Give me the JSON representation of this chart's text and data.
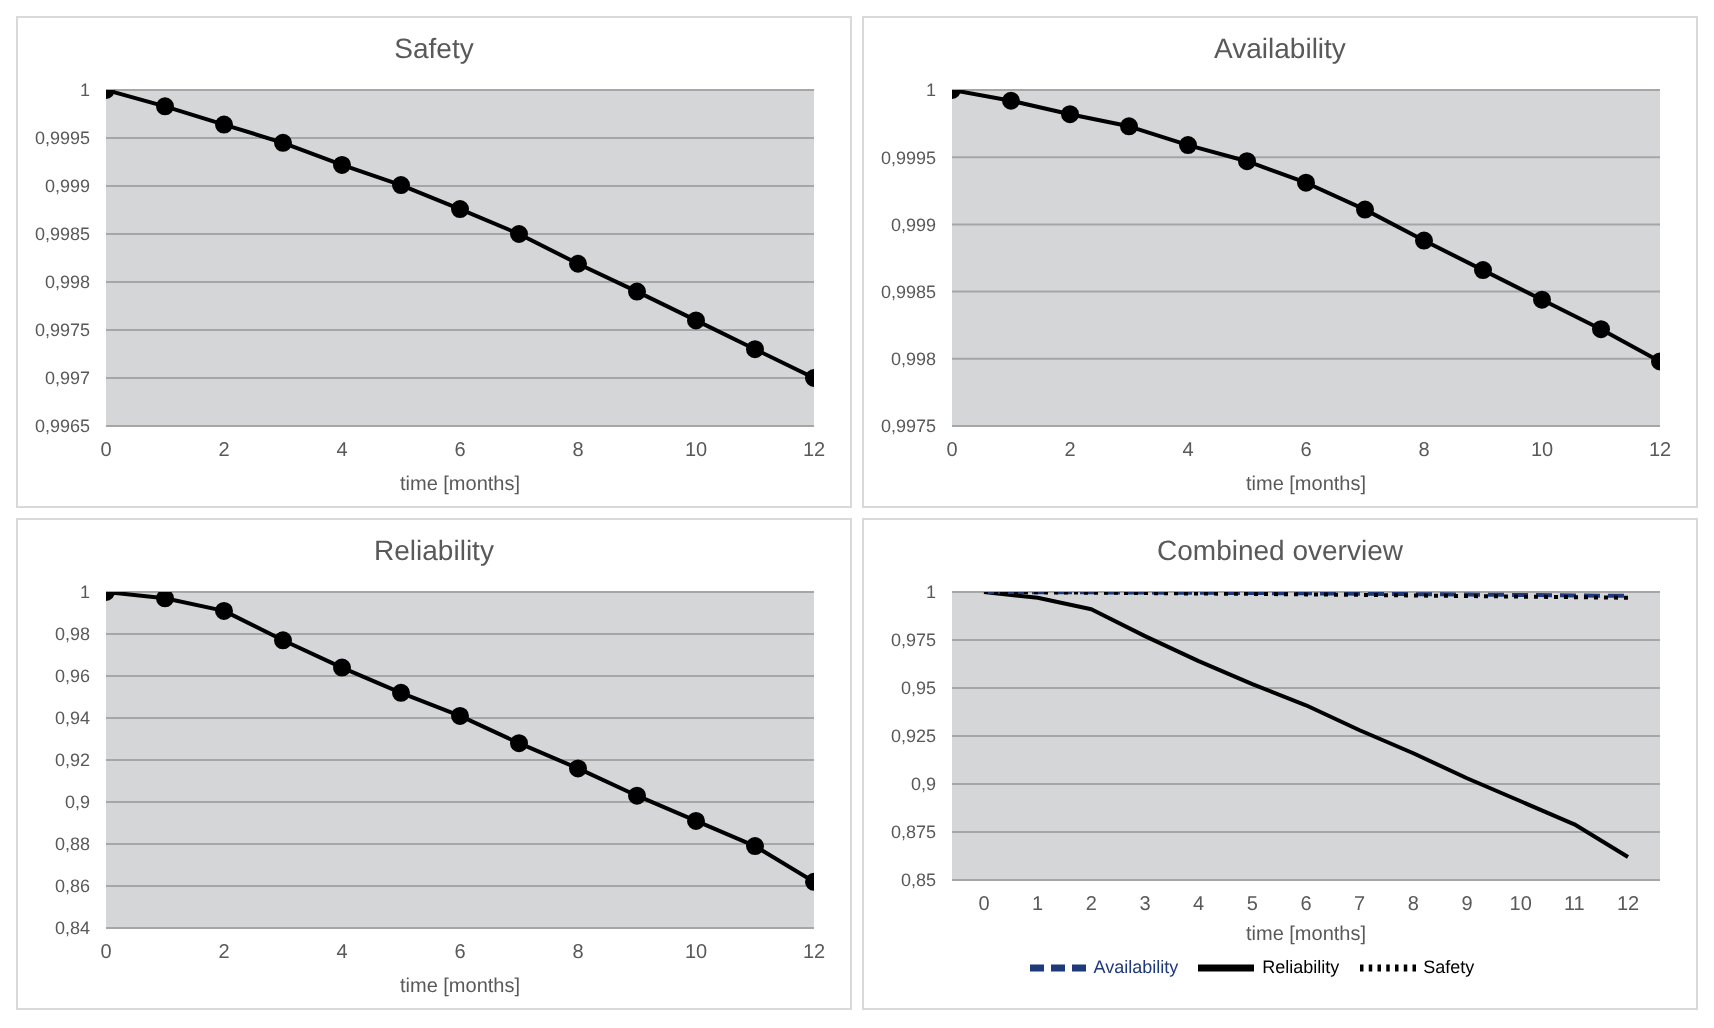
{
  "chart_data": [
    {
      "type": "line",
      "title": "Safety",
      "xlabel": "time [months]",
      "x": [
        0,
        1,
        2,
        3,
        4,
        5,
        6,
        7,
        8,
        9,
        10,
        11,
        12
      ],
      "xlim": [
        0,
        12
      ],
      "xticks": [
        0,
        2,
        4,
        6,
        8,
        10,
        12
      ],
      "values": [
        1,
        0.99983,
        0.99964,
        0.99945,
        0.99922,
        0.99901,
        0.99876,
        0.9985,
        0.99819,
        0.9979,
        0.9976,
        0.9973,
        0.997
      ],
      "color": "#000000",
      "ylim": [
        0.9965,
        1
      ],
      "yticks": [
        {
          "value": 0.9965,
          "label": "0,9965"
        },
        {
          "value": 0.997,
          "label": "0,997"
        },
        {
          "value": 0.9975,
          "label": "0,9975"
        },
        {
          "value": 0.998,
          "label": "0,998"
        },
        {
          "value": 0.9985,
          "label": "0,9985"
        },
        {
          "value": 0.999,
          "label": "0,999"
        },
        {
          "value": 0.9995,
          "label": "0,9995"
        },
        {
          "value": 1,
          "label": "1"
        }
      ],
      "grid": "y",
      "marker": "circle"
    },
    {
      "type": "line",
      "title": "Availability",
      "xlabel": "time [months]",
      "x": [
        0,
        1,
        2,
        3,
        4,
        5,
        6,
        7,
        8,
        9,
        10,
        11,
        12
      ],
      "xlim": [
        0,
        12
      ],
      "xticks": [
        0,
        2,
        4,
        6,
        8,
        10,
        12
      ],
      "values": [
        1,
        0.99992,
        0.99982,
        0.99973,
        0.99959,
        0.99947,
        0.99931,
        0.99911,
        0.99888,
        0.99866,
        0.99844,
        0.99822,
        0.99798
      ],
      "color": "#000000",
      "ylim": [
        0.9975,
        1
      ],
      "yticks": [
        {
          "value": 0.9975,
          "label": "0,9975"
        },
        {
          "value": 0.998,
          "label": "0,998"
        },
        {
          "value": 0.9985,
          "label": "0,9985"
        },
        {
          "value": 0.999,
          "label": "0,999"
        },
        {
          "value": 0.9995,
          "label": "0,9995"
        },
        {
          "value": 1,
          "label": "1"
        }
      ],
      "grid": "y",
      "marker": "circle"
    },
    {
      "type": "line",
      "title": "Reliability",
      "xlabel": "time [months]",
      "x": [
        0,
        1,
        2,
        3,
        4,
        5,
        6,
        7,
        8,
        9,
        10,
        11,
        12
      ],
      "xlim": [
        0,
        12
      ],
      "xticks": [
        0,
        2,
        4,
        6,
        8,
        10,
        12
      ],
      "values": [
        1,
        0.997,
        0.991,
        0.977,
        0.964,
        0.952,
        0.941,
        0.928,
        0.916,
        0.903,
        0.891,
        0.879,
        0.862
      ],
      "color": "#000000",
      "ylim": [
        0.84,
        1
      ],
      "yticks": [
        {
          "value": 0.84,
          "label": "0,84"
        },
        {
          "value": 0.86,
          "label": "0,86"
        },
        {
          "value": 0.88,
          "label": "0,88"
        },
        {
          "value": 0.9,
          "label": "0,9"
        },
        {
          "value": 0.92,
          "label": "0,92"
        },
        {
          "value": 0.94,
          "label": "0,94"
        },
        {
          "value": 0.96,
          "label": "0,96"
        },
        {
          "value": 0.98,
          "label": "0,98"
        },
        {
          "value": 1,
          "label": "1"
        }
      ],
      "grid": "y",
      "marker": "circle"
    },
    {
      "type": "line",
      "title": "Combined overview",
      "xlabel": "time [months]",
      "categories": [
        "0",
        "1",
        "2",
        "3",
        "4",
        "5",
        "6",
        "7",
        "8",
        "9",
        "10",
        "11",
        "12"
      ],
      "series": [
        {
          "name": "Reliability",
          "color": "#000000",
          "line_style": "solid",
          "values": [
            1,
            0.997,
            0.991,
            0.977,
            0.964,
            0.952,
            0.941,
            0.928,
            0.916,
            0.903,
            0.891,
            0.879,
            0.862
          ]
        },
        {
          "name": "Availability",
          "color": "#1f3a7a",
          "line_style": "dashed",
          "values": [
            1,
            0.99992,
            0.99982,
            0.99973,
            0.99959,
            0.99947,
            0.99931,
            0.99911,
            0.99888,
            0.99866,
            0.99844,
            0.99822,
            0.99798
          ]
        },
        {
          "name": "Safety",
          "color": "#000000",
          "line_style": "dotted",
          "values": [
            1,
            0.99983,
            0.99964,
            0.99945,
            0.99922,
            0.99901,
            0.99876,
            0.9985,
            0.99819,
            0.9979,
            0.9976,
            0.9973,
            0.997
          ]
        }
      ],
      "ylim": [
        0.85,
        1
      ],
      "yticks": [
        {
          "value": 0.85,
          "label": "0,85"
        },
        {
          "value": 0.875,
          "label": "0,875"
        },
        {
          "value": 0.9,
          "label": "0,9"
        },
        {
          "value": 0.925,
          "label": "0,925"
        },
        {
          "value": 0.95,
          "label": "0,95"
        },
        {
          "value": 0.975,
          "label": "0,975"
        },
        {
          "value": 1,
          "label": "1"
        }
      ],
      "grid": "y",
      "legend": "bottom"
    }
  ]
}
